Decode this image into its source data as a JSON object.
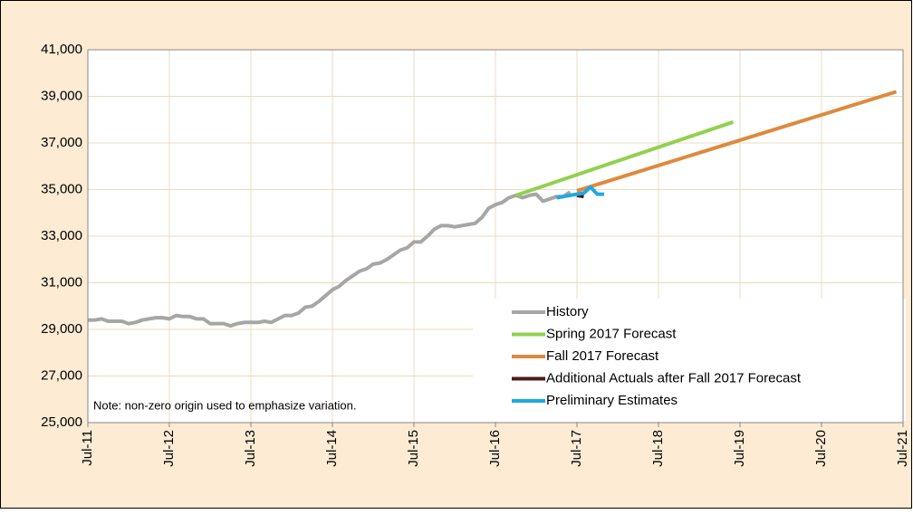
{
  "chart_data": {
    "type": "line",
    "annotation": "Note: non-zero origin used to emphasize variation.",
    "xlim": [
      "2011-07",
      "2021-07"
    ],
    "xticks": [
      {
        "value": "2011-07",
        "label": "Jul-11"
      },
      {
        "value": "2012-07",
        "label": "Jul-12"
      },
      {
        "value": "2013-07",
        "label": "Jul-13"
      },
      {
        "value": "2014-07",
        "label": "Jul-14"
      },
      {
        "value": "2015-07",
        "label": "Jul-15"
      },
      {
        "value": "2016-07",
        "label": "Jul-16"
      },
      {
        "value": "2017-07",
        "label": "Jul-17"
      },
      {
        "value": "2018-07",
        "label": "Jul-18"
      },
      {
        "value": "2019-07",
        "label": "Jul-19"
      },
      {
        "value": "2020-07",
        "label": "Jul-20"
      },
      {
        "value": "2021-07",
        "label": "Jul-21"
      }
    ],
    "ylim": [
      25000,
      41000
    ],
    "yticks": [
      {
        "value": 25000,
        "label": "25,000"
      },
      {
        "value": 27000,
        "label": "27,000"
      },
      {
        "value": 29000,
        "label": "29,000"
      },
      {
        "value": 31000,
        "label": "31,000"
      },
      {
        "value": 33000,
        "label": "33,000"
      },
      {
        "value": 35000,
        "label": "35,000"
      },
      {
        "value": 37000,
        "label": "37,000"
      },
      {
        "value": 39000,
        "label": "39,000"
      },
      {
        "value": 41000,
        "label": "41,000"
      }
    ],
    "grid": true,
    "legend": "lower right",
    "series": [
      {
        "name": "History",
        "color": "#a6a6a6",
        "x": [
          "2011-07",
          "2011-08",
          "2011-09",
          "2011-10",
          "2011-11",
          "2011-12",
          "2012-01",
          "2012-02",
          "2012-03",
          "2012-04",
          "2012-05",
          "2012-06",
          "2012-07",
          "2012-08",
          "2012-09",
          "2012-10",
          "2012-11",
          "2012-12",
          "2013-01",
          "2013-02",
          "2013-03",
          "2013-04",
          "2013-05",
          "2013-06",
          "2013-07",
          "2013-08",
          "2013-09",
          "2013-10",
          "2013-11",
          "2013-12",
          "2014-01",
          "2014-02",
          "2014-03",
          "2014-04",
          "2014-05",
          "2014-06",
          "2014-07",
          "2014-08",
          "2014-09",
          "2014-10",
          "2014-11",
          "2014-12",
          "2015-01",
          "2015-02",
          "2015-03",
          "2015-04",
          "2015-05",
          "2015-06",
          "2015-07",
          "2015-08",
          "2015-09",
          "2015-10",
          "2015-11",
          "2015-12",
          "2016-01",
          "2016-02",
          "2016-03",
          "2016-04",
          "2016-05",
          "2016-06",
          "2016-07",
          "2016-08",
          "2016-09",
          "2016-10",
          "2016-11",
          "2016-12",
          "2017-01",
          "2017-02",
          "2017-03",
          "2017-04",
          "2017-05",
          "2017-06"
        ],
        "values": [
          29400,
          29400,
          29450,
          29350,
          29350,
          29350,
          29250,
          29300,
          29400,
          29450,
          29500,
          29500,
          29450,
          29600,
          29550,
          29550,
          29450,
          29450,
          29250,
          29250,
          29250,
          29150,
          29250,
          29300,
          29300,
          29300,
          29350,
          29300,
          29450,
          29600,
          29600,
          29700,
          29950,
          30000,
          30200,
          30450,
          30700,
          30850,
          31100,
          31300,
          31500,
          31600,
          31800,
          31850,
          32000,
          32200,
          32400,
          32500,
          32750,
          32750,
          33000,
          33300,
          33450,
          33450,
          33400,
          33450,
          33500,
          33550,
          33800,
          34200,
          34350,
          34450,
          34650,
          34750,
          34650,
          34750,
          34800,
          34500,
          34600,
          34700,
          34700,
          34900
        ]
      },
      {
        "name": "Spring 2017 Forecast",
        "color": "#92d050",
        "x": [
          "2016-10",
          "2019-06"
        ],
        "values": [
          34750,
          37900
        ]
      },
      {
        "name": "Fall 2017 Forecast",
        "color": "#dd8a3e",
        "x": [
          "2017-07",
          "2021-06"
        ],
        "values": [
          34950,
          39200
        ]
      },
      {
        "name": "Additional Actuals after Fall 2017 Forecast",
        "color": "#4a1c1c",
        "x": [
          "2017-07",
          "2017-08"
        ],
        "values": [
          34750,
          34700
        ]
      },
      {
        "name": "Preliminary Estimates",
        "color": "#1fa9e0",
        "x": [
          "2017-04",
          "2017-05",
          "2017-06",
          "2017-07",
          "2017-08",
          "2017-09",
          "2017-10",
          "2017-11"
        ],
        "values": [
          34650,
          34700,
          34750,
          34800,
          34850,
          35100,
          34800,
          34800
        ]
      }
    ]
  }
}
